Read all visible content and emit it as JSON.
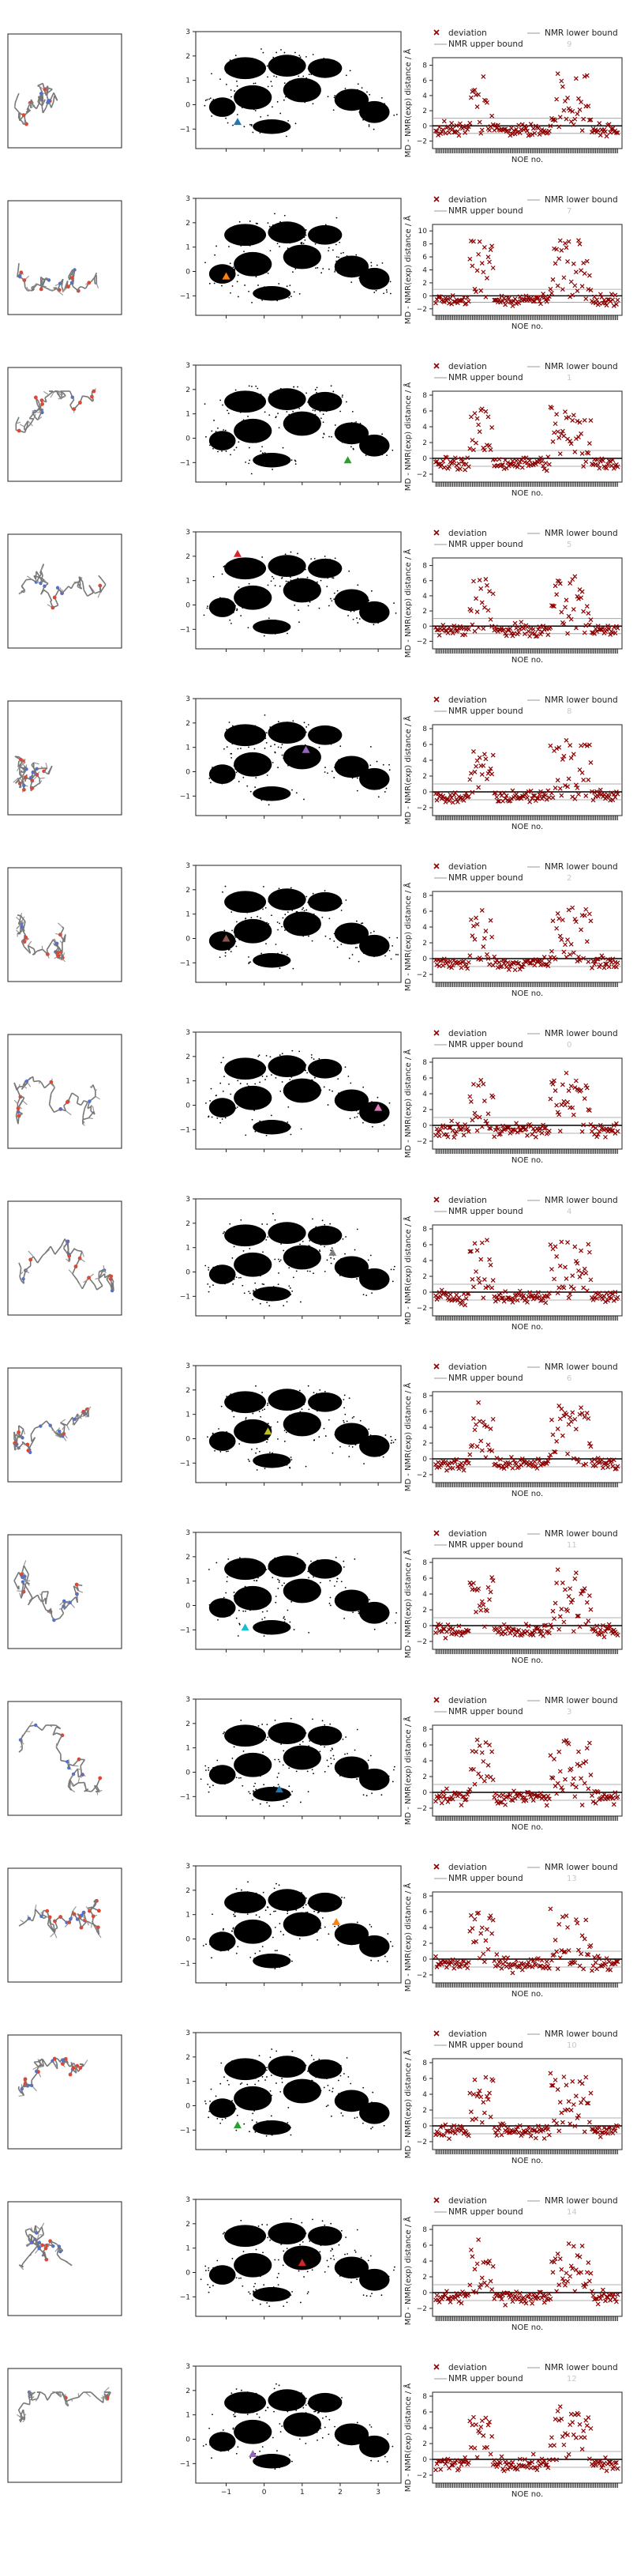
{
  "chart_data": {
    "type": "figure-grid",
    "rows": [
      {
        "marker_color": "#1f77b4",
        "marker": {
          "x": -0.7,
          "y": -0.7
        },
        "noe_ylim": [
          -3,
          9
        ],
        "noe_yticks": [
          -2,
          0,
          2,
          4,
          6,
          8
        ],
        "row_label": "9"
      },
      {
        "marker_color": "#ff7f0e",
        "marker": {
          "x": -1.0,
          "y": -0.2
        },
        "noe_ylim": [
          -3,
          11
        ],
        "noe_yticks": [
          -2,
          0,
          2,
          4,
          6,
          8,
          10
        ],
        "row_label": "7"
      },
      {
        "marker_color": "#2ca02c",
        "marker": {
          "x": 2.2,
          "y": -0.9
        },
        "noe_ylim": [
          -3,
          8.5
        ],
        "noe_yticks": [
          -2,
          0,
          2,
          4,
          6,
          8
        ],
        "row_label": "1"
      },
      {
        "marker_color": "#d62728",
        "marker": {
          "x": -0.7,
          "y": 2.1
        },
        "noe_ylim": [
          -3,
          9
        ],
        "noe_yticks": [
          -2,
          0,
          2,
          4,
          6,
          8
        ],
        "row_label": "5"
      },
      {
        "marker_color": "#9467bd",
        "marker": {
          "x": 1.1,
          "y": 0.9
        },
        "noe_ylim": [
          -3,
          8.5
        ],
        "noe_yticks": [
          -2,
          0,
          2,
          4,
          6,
          8
        ],
        "row_label": "8"
      },
      {
        "marker_color": "#8c564b",
        "marker": {
          "x": -1.0,
          "y": 0.0
        },
        "noe_ylim": [
          -3,
          8.5
        ],
        "noe_yticks": [
          -2,
          0,
          2,
          4,
          6,
          8
        ],
        "row_label": "2"
      },
      {
        "marker_color": "#e377c2",
        "marker": {
          "x": 3.0,
          "y": -0.1
        },
        "noe_ylim": [
          -3,
          8.5
        ],
        "noe_yticks": [
          -2,
          0,
          2,
          4,
          6,
          8
        ],
        "row_label": "0"
      },
      {
        "marker_color": "#7f7f7f",
        "marker": {
          "x": 1.8,
          "y": 0.8
        },
        "noe_ylim": [
          -3,
          8.5
        ],
        "noe_yticks": [
          -2,
          0,
          2,
          4,
          6,
          8
        ],
        "row_label": "4"
      },
      {
        "marker_color": "#bcbd22",
        "marker": {
          "x": 0.1,
          "y": 0.3
        },
        "noe_ylim": [
          -3,
          8.5
        ],
        "noe_yticks": [
          -2,
          0,
          2,
          4,
          6,
          8
        ],
        "row_label": "6"
      },
      {
        "marker_color": "#17becf",
        "marker": {
          "x": -0.5,
          "y": -0.9
        },
        "noe_ylim": [
          -3,
          8.5
        ],
        "noe_yticks": [
          -2,
          0,
          2,
          4,
          6,
          8
        ],
        "row_label": "11"
      },
      {
        "marker_color": "#1f77b4",
        "marker": {
          "x": 0.4,
          "y": -0.7
        },
        "noe_ylim": [
          -3,
          8.5
        ],
        "noe_yticks": [
          -2,
          0,
          2,
          4,
          6,
          8
        ],
        "row_label": "3"
      },
      {
        "marker_color": "#ff7f0e",
        "marker": {
          "x": 1.9,
          "y": 0.7
        },
        "noe_ylim": [
          -3,
          8.5
        ],
        "noe_yticks": [
          -2,
          0,
          2,
          4,
          6,
          8
        ],
        "row_label": "13"
      },
      {
        "marker_color": "#2ca02c",
        "marker": {
          "x": -0.7,
          "y": -0.8
        },
        "noe_ylim": [
          -3,
          8.5
        ],
        "noe_yticks": [
          -2,
          0,
          2,
          4,
          6,
          8
        ],
        "row_label": "10"
      },
      {
        "marker_color": "#d62728",
        "marker": {
          "x": 1.0,
          "y": 0.4
        },
        "noe_ylim": [
          -3,
          8.5
        ],
        "noe_yticks": [
          -2,
          0,
          2,
          4,
          6,
          8
        ],
        "row_label": "14"
      },
      {
        "marker_color": "#9467bd",
        "marker": {
          "x": -0.3,
          "y": -0.6
        },
        "noe_ylim": [
          -3,
          8.5
        ],
        "noe_yticks": [
          -2,
          0,
          2,
          4,
          6,
          8
        ],
        "row_label": "12"
      }
    ],
    "scatter_xticks": [
      -1,
      0,
      1,
      2,
      3
    ],
    "scatter_yticks": [
      -1,
      0,
      1,
      2,
      3
    ],
    "scatter_xlim": [
      -1.8,
      3.6
    ],
    "scatter_ylim": [
      -1.8,
      3.0
    ],
    "noe_xlabel": "NOE no.",
    "noe_ylabel": "MD - NMR(exp)  distance / Å",
    "legend": {
      "deviation": "deviation",
      "upper": "NMR upper bound",
      "lower": "NMR lower bound"
    },
    "colors": {
      "deviation": "#8b0000",
      "bounds": "#999999",
      "scatter": "#000000"
    }
  }
}
